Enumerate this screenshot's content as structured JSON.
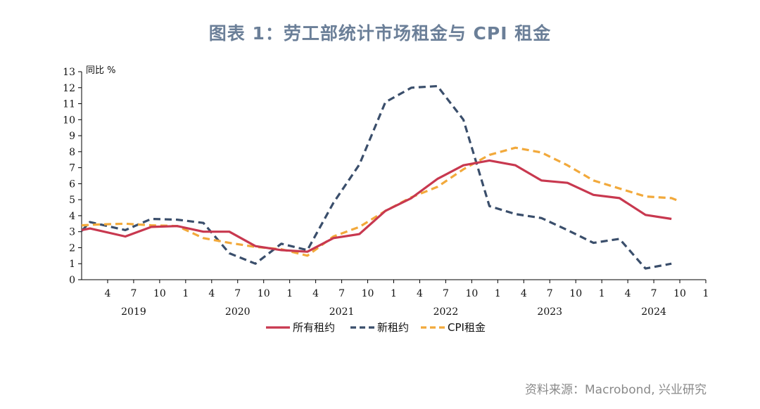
{
  "title": "图表 1：劳工部统计市场租金与 CPI 租金",
  "source": "资料来源：Macrobond, 兴业研究",
  "chart_data": {
    "type": "line",
    "unit_label": "同比 %",
    "ylim": [
      0,
      13
    ],
    "yticks": [
      0,
      1,
      2,
      3,
      4,
      5,
      6,
      7,
      8,
      9,
      10,
      11,
      12,
      13
    ],
    "xlim": [
      2019.0,
      2025.0
    ],
    "x_ticks": [
      {
        "x": 2019.25,
        "label": "4"
      },
      {
        "x": 2019.5,
        "label": "7"
      },
      {
        "x": 2019.75,
        "label": "10"
      },
      {
        "x": 2020.0,
        "label": "1"
      },
      {
        "x": 2020.25,
        "label": "4"
      },
      {
        "x": 2020.5,
        "label": "7"
      },
      {
        "x": 2020.75,
        "label": "10"
      },
      {
        "x": 2021.0,
        "label": "1"
      },
      {
        "x": 2021.25,
        "label": "4"
      },
      {
        "x": 2021.5,
        "label": "7"
      },
      {
        "x": 2021.75,
        "label": "10"
      },
      {
        "x": 2022.0,
        "label": "1"
      },
      {
        "x": 2022.25,
        "label": "4"
      },
      {
        "x": 2022.5,
        "label": "7"
      },
      {
        "x": 2022.75,
        "label": "10"
      },
      {
        "x": 2023.0,
        "label": "1"
      },
      {
        "x": 2023.25,
        "label": "4"
      },
      {
        "x": 2023.5,
        "label": "7"
      },
      {
        "x": 2023.75,
        "label": "10"
      },
      {
        "x": 2024.0,
        "label": "1"
      },
      {
        "x": 2024.25,
        "label": "4"
      },
      {
        "x": 2024.5,
        "label": "7"
      },
      {
        "x": 2024.75,
        "label": "10"
      },
      {
        "x": 2025.0,
        "label": "1"
      }
    ],
    "year_labels": [
      {
        "x": 2019.5,
        "label": "2019"
      },
      {
        "x": 2020.5,
        "label": "2020"
      },
      {
        "x": 2021.5,
        "label": "2021"
      },
      {
        "x": 2022.5,
        "label": "2022"
      },
      {
        "x": 2023.5,
        "label": "2023"
      },
      {
        "x": 2024.5,
        "label": "2024"
      }
    ],
    "series": [
      {
        "name": "所有租约",
        "color": "#c8384f",
        "style": "solid",
        "x": [
          2019.0,
          2019.08,
          2019.42,
          2019.67,
          2019.92,
          2020.17,
          2020.42,
          2020.67,
          2020.92,
          2021.17,
          2021.42,
          2021.67,
          2021.92,
          2022.17,
          2022.42,
          2022.67,
          2022.92,
          2023.17,
          2023.42,
          2023.67,
          2023.92,
          2024.17,
          2024.42,
          2024.67
        ],
        "y": [
          3.1,
          3.2,
          2.7,
          3.3,
          3.35,
          3.0,
          3.0,
          2.1,
          1.85,
          1.75,
          2.6,
          2.85,
          4.3,
          5.1,
          6.3,
          7.15,
          7.45,
          7.15,
          6.2,
          6.05,
          5.3,
          5.1,
          4.05,
          3.8
        ]
      },
      {
        "name": "新租约",
        "color": "#3a4e6b",
        "style": "dashed",
        "x": [
          2019.0,
          2019.08,
          2019.42,
          2019.67,
          2019.92,
          2020.17,
          2020.42,
          2020.67,
          2020.92,
          2021.17,
          2021.42,
          2021.67,
          2021.92,
          2022.17,
          2022.42,
          2022.67,
          2022.92,
          2023.17,
          2023.42,
          2023.67,
          2023.92,
          2024.17,
          2024.42,
          2024.67
        ],
        "y": [
          3.05,
          3.6,
          3.1,
          3.8,
          3.75,
          3.55,
          1.65,
          1.0,
          2.25,
          1.85,
          4.8,
          7.2,
          11.1,
          12.0,
          12.1,
          10.0,
          4.6,
          4.1,
          3.85,
          3.1,
          2.3,
          2.55,
          0.7,
          1.0
        ]
      },
      {
        "name": "CPI租金",
        "color": "#f2a93b",
        "style": "dashed",
        "x": [
          2019.0,
          2019.17,
          2019.42,
          2019.67,
          2019.92,
          2020.17,
          2020.42,
          2020.67,
          2020.92,
          2021.17,
          2021.42,
          2021.67,
          2021.92,
          2022.17,
          2022.42,
          2022.67,
          2022.92,
          2023.17,
          2023.42,
          2023.67,
          2023.92,
          2024.17,
          2024.42,
          2024.67,
          2024.75
        ],
        "y": [
          3.4,
          3.45,
          3.5,
          3.4,
          3.35,
          2.6,
          2.3,
          2.05,
          1.9,
          1.5,
          2.7,
          3.3,
          4.3,
          5.15,
          5.8,
          6.9,
          7.8,
          8.25,
          7.95,
          7.15,
          6.2,
          5.7,
          5.2,
          5.1,
          4.9
        ]
      }
    ]
  }
}
